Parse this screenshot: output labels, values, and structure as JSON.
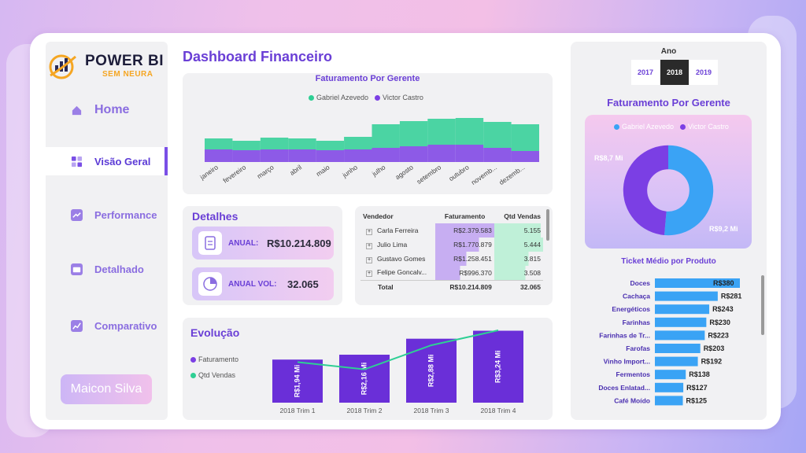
{
  "brand": {
    "title": "POWER BI",
    "subtitle": "SEM NEURA"
  },
  "nav": [
    {
      "label": "Home",
      "icon": "home-icon",
      "active": false
    },
    {
      "label": "Visão Geral",
      "icon": "overview-icon",
      "active": true
    },
    {
      "label": "Performance",
      "icon": "performance-icon",
      "active": false
    },
    {
      "label": "Detalhado",
      "icon": "wallet-icon",
      "active": false
    },
    {
      "label": "Comparativo",
      "icon": "compare-icon",
      "active": false
    }
  ],
  "user": {
    "name": "Maicon Silva"
  },
  "page_title": "Dashboard Financeiro",
  "colors": {
    "accent": "#6a3fd6",
    "purple": "#7b3fe4",
    "green": "#2ecf94",
    "blue": "#3aa3f5"
  },
  "monthly": {
    "title": "Faturamento Por Gerente",
    "legend": [
      "Gabriel Azevedo",
      "Victor Castro"
    ],
    "months": [
      "janeiro",
      "fevereiro",
      "março",
      "abril",
      "maio",
      "junho",
      "julho",
      "agosto",
      "setembro",
      "outubro",
      "novemb...",
      "dezemb..."
    ]
  },
  "details": {
    "title": "Detalhes",
    "annual_label": "ANUAL:",
    "annual_value": "R$10.214.809",
    "vol_label": "ANUAL VOL:",
    "vol_value": "32.065"
  },
  "table": {
    "headers": [
      "Vendedor",
      "Faturamento",
      "Qtd Vendas"
    ],
    "rows": [
      {
        "name": "Carla Ferreira",
        "fat": "R$2.379.583",
        "qtd": "5.155",
        "fat_frac": 1.0,
        "qtd_frac": 0.95
      },
      {
        "name": "Julio Lima",
        "fat": "R$1.770.879",
        "qtd": "5.444",
        "fat_frac": 0.74,
        "qtd_frac": 1.0
      },
      {
        "name": "Gustavo Gomes",
        "fat": "R$1.258.451",
        "qtd": "3.815",
        "fat_frac": 0.53,
        "qtd_frac": 0.7
      },
      {
        "name": "Felipe Goncalv...",
        "fat": "R$996.370",
        "qtd": "3.508",
        "fat_frac": 0.42,
        "qtd_frac": 0.64
      }
    ],
    "total_label": "Total",
    "total_fat": "R$10.214.809",
    "total_qtd": "32.065"
  },
  "evolution": {
    "title": "Evolução",
    "legend": [
      "Faturamento",
      "Qtd Vendas"
    ]
  },
  "chart_data": [
    {
      "type": "bar",
      "title": "Evolução",
      "categories": [
        "2018 Trim 1",
        "2018 Trim 2",
        "2018 Trim 3",
        "2018 Trim 4"
      ],
      "series": [
        {
          "name": "Faturamento",
          "values": [
            1.94,
            2.16,
            2.88,
            3.24
          ],
          "labels": [
            "R$1,94 Mi",
            "R$2,16 Mi",
            "R$2,88 Mi",
            "R$3,24 Mi"
          ]
        },
        {
          "name": "Qtd Vendas",
          "type": "line",
          "values": [
            6300,
            6900,
            9000,
            10300
          ]
        }
      ]
    },
    {
      "type": "pie",
      "title": "Faturamento Por Gerente",
      "categories": [
        "Gabriel Azevedo",
        "Victor Castro"
      ],
      "values": [
        9.2,
        8.7
      ],
      "labels": [
        "R$9,2 Mi",
        "R$8,7 Mi"
      ]
    },
    {
      "type": "bar",
      "title": "Ticket Médio por Produto",
      "categories": [
        "Doces",
        "Cachaça",
        "Energéticos",
        "Farinhas",
        "Farinhas de Tr...",
        "Farofas",
        "Vinho Import...",
        "Fermentos",
        "Doces Enlatad...",
        "Café Moído"
      ],
      "values": [
        380,
        281,
        243,
        230,
        223,
        203,
        192,
        138,
        127,
        125
      ],
      "labels": [
        "R$380",
        "R$281",
        "R$243",
        "R$230",
        "R$223",
        "R$203",
        "R$192",
        "R$138",
        "R$127",
        "R$125"
      ]
    }
  ],
  "year_filter": {
    "title": "Ano",
    "years": [
      "2017",
      "2018",
      "2019"
    ],
    "selected": "2018"
  },
  "donut": {
    "title": "Faturamento Por Gerente",
    "legend": [
      "Gabriel Azevedo",
      "Victor Castro"
    ]
  },
  "ticket": {
    "title": "Ticket Médio por Produto"
  }
}
